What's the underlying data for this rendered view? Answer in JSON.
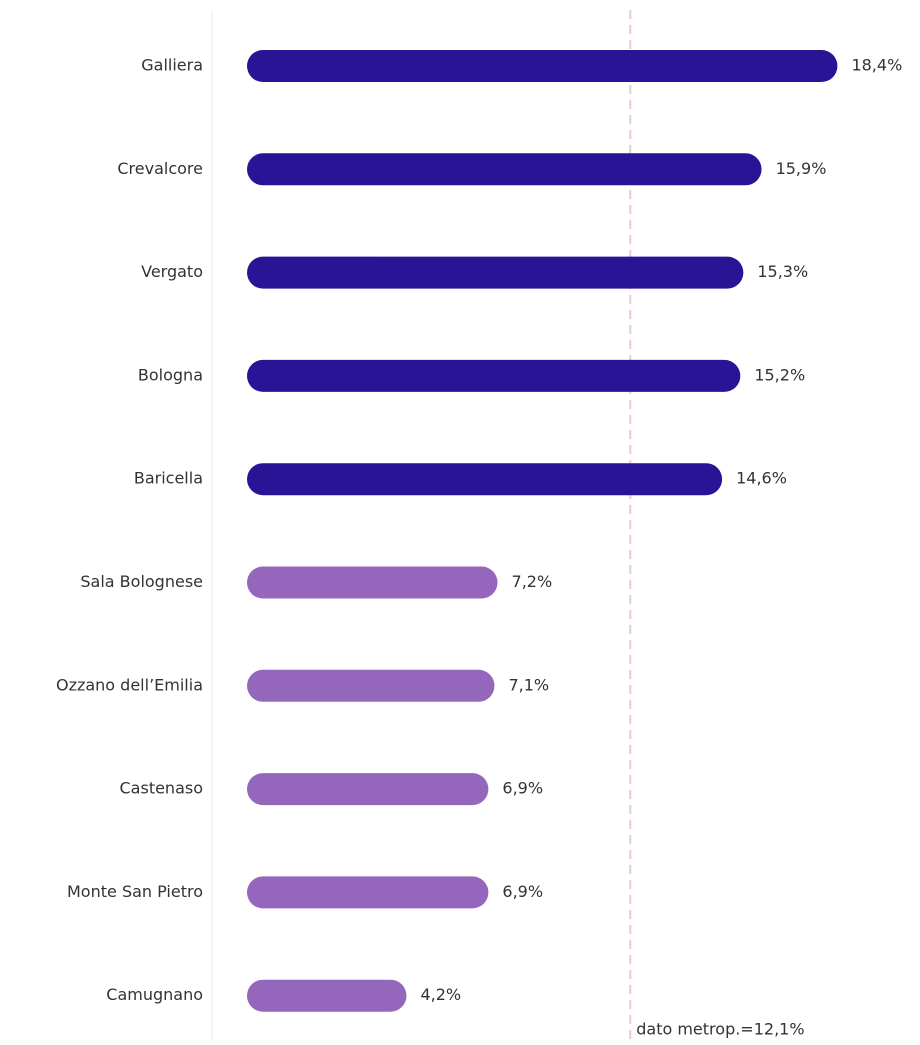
{
  "chart_data": {
    "type": "bar",
    "orientation": "horizontal",
    "categories": [
      "Galliera",
      "Crevalcore",
      "Vergato",
      "Bologna",
      "Baricella",
      "Sala Bolognese",
      "Ozzano dell’Emilia",
      "Castenaso",
      "Monte San Pietro",
      "Camugnano"
    ],
    "values": [
      18.4,
      15.9,
      15.3,
      15.2,
      14.6,
      7.2,
      7.1,
      6.9,
      6.9,
      4.2
    ],
    "value_labels": [
      "18,4%",
      "15,9%",
      "15,3%",
      "15,2%",
      "14,6%",
      "7,2%",
      "7,1%",
      "6,9%",
      "6,9%",
      "4,2%"
    ],
    "colors": [
      "#2a1496",
      "#2a1496",
      "#2a1496",
      "#2a1496",
      "#2a1496",
      "#9467bd",
      "#9467bd",
      "#9467bd",
      "#9467bd",
      "#9467bd"
    ],
    "reference": {
      "value": 12.1,
      "label": "dato metrop.=12,1%",
      "color": "#e8cbd6"
    }
  }
}
